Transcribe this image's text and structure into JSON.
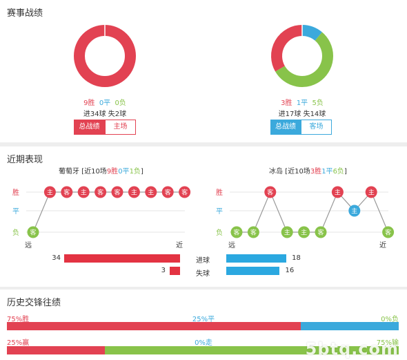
{
  "summary": {
    "title": "赛事战绩",
    "left": {
      "wins": "9胜",
      "draws": "0平",
      "losses": "0负",
      "goals": "进34球 失2球",
      "tabs": [
        "总战绩",
        "主场"
      ],
      "ring": {
        "win": 9,
        "draw": 0,
        "loss": 0
      }
    },
    "right": {
      "wins": "3胜",
      "draws": "1平",
      "losses": "5负",
      "goals": "进17球 失14球",
      "tabs": [
        "总战绩",
        "客场"
      ],
      "ring": {
        "win": 3,
        "draw": 1,
        "loss": 5
      }
    }
  },
  "recent": {
    "title": "近期表现",
    "left": {
      "team": "葡萄牙",
      "caption_pre": " [近10场",
      "wins": "9胜",
      "draws": "0平",
      "losses": "1负",
      "caption_post": "]",
      "results": [
        "负",
        "胜",
        "胜",
        "胜",
        "胜",
        "胜",
        "胜",
        "胜",
        "胜",
        "胜"
      ],
      "venues": [
        "客",
        "主",
        "客",
        "主",
        "客",
        "客",
        "主",
        "主",
        "客",
        "客"
      ]
    },
    "right": {
      "team": "冰岛",
      "caption_pre": " [近10场",
      "wins": "3胜",
      "draws": "1平",
      "losses": "6负",
      "caption_post": "]",
      "results": [
        "负",
        "负",
        "胜",
        "负",
        "负",
        "负",
        "胜",
        "平",
        "胜",
        "负"
      ],
      "venues": [
        "客",
        "客",
        "客",
        "主",
        "主",
        "客",
        "主",
        "主",
        "主",
        "客"
      ]
    },
    "axis_labels": {
      "win": "胜",
      "draw": "平",
      "loss": "负",
      "far": "远",
      "near": "近"
    },
    "goals": {
      "left_scored": "34",
      "left_conceded": "3",
      "label_scored": "进球",
      "label_conceded": "失球",
      "right_scored": "18",
      "right_conceded": "16",
      "values": {
        "left_scored": 34,
        "left_conceded": 3,
        "right_scored": 18,
        "right_conceded": 16
      }
    }
  },
  "history": {
    "title": "历史交锋往绩",
    "row1": {
      "left": "75%胜",
      "mid": "25%平",
      "right": "0%负",
      "split": [
        75,
        25,
        0
      ]
    },
    "row2": {
      "left": "25%赢",
      "mid": "0%走",
      "right": "75%输",
      "split": [
        25,
        0,
        75
      ]
    }
  },
  "colors": {
    "win": "#e24252",
    "draw": "#3ba9dc",
    "loss": "#88c34a",
    "goal_bar_left": "#e33342",
    "goal_bar_right": "#2ba8e0"
  },
  "watermark": "5btq.com"
}
